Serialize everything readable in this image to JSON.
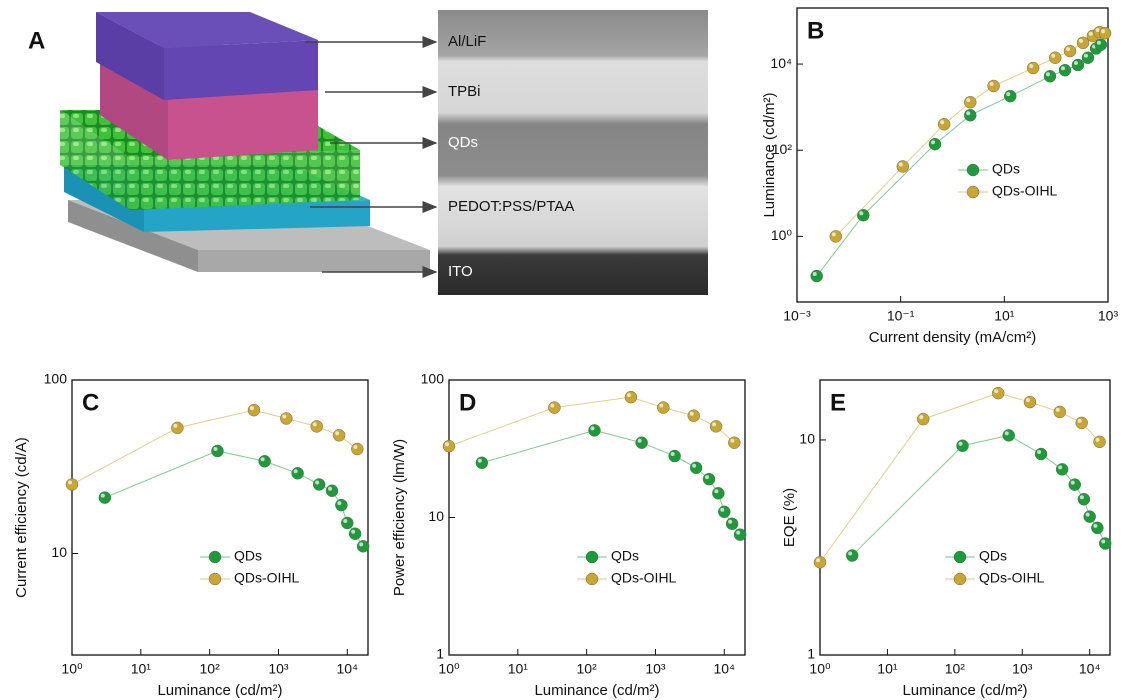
{
  "device": {
    "panel_label": "A",
    "layers": [
      "Al/LiF",
      "TPBi",
      "QDs",
      "PEDOT:PSS/PTAA",
      "ITO"
    ]
  },
  "chart_data": [
    {
      "type": "scatter",
      "panel_label": "B",
      "xlabel": "Current density (mA/cm²)",
      "ylabel": "Luminance (cd/m²)",
      "xscale": "log",
      "yscale": "log",
      "xlim": [
        0.001,
        1000
      ],
      "ylim": [
        0.03,
        200000
      ],
      "xticks": [
        {
          "value": 0.001,
          "label": "10⁻³"
        },
        {
          "value": 0.1,
          "label": "10⁻¹"
        },
        {
          "value": 10,
          "label": "10¹"
        },
        {
          "value": 1000,
          "label": "10³"
        }
      ],
      "yticks": [
        {
          "value": 1,
          "label": "10⁰"
        },
        {
          "value": 100,
          "label": "10²"
        },
        {
          "value": 10000,
          "label": "10⁴"
        }
      ],
      "legend": "center right",
      "series": [
        {
          "name": "QDs",
          "color": "#1f9a3a",
          "x": [
            0.0024,
            0.019,
            0.46,
            2.2,
            13,
            76,
            148,
            263,
            410,
            590,
            730
          ],
          "values": [
            0.12,
            3.1,
            138,
            650,
            1800,
            5200,
            7200,
            9500,
            14000,
            23000,
            28000
          ]
        },
        {
          "name": "QDs-OIHL",
          "color": "#c9a531",
          "x": [
            0.0056,
            0.11,
            0.69,
            2.2,
            6.2,
            36,
            96,
            185,
            330,
            510,
            690,
            880
          ],
          "values": [
            1.0,
            42,
            400,
            1300,
            3100,
            8100,
            14000,
            20000,
            31000,
            45000,
            55000,
            52000
          ]
        }
      ]
    },
    {
      "type": "scatter",
      "panel_label": "C",
      "xlabel": "Luminance (cd/m²)",
      "ylabel": "Current efficiency (cd/A)",
      "xscale": "log",
      "yscale": "log",
      "xlim": [
        1,
        20000
      ],
      "ylim": [
        2.6,
        100
      ],
      "xticks": [
        {
          "value": 1,
          "label": "10⁰"
        },
        {
          "value": 10,
          "label": "10¹"
        },
        {
          "value": 100,
          "label": "10²"
        },
        {
          "value": 1000,
          "label": "10³"
        },
        {
          "value": 10000,
          "label": "10⁴"
        }
      ],
      "yticks": [
        10,
        100
      ],
      "legend": "lower center",
      "series": [
        {
          "name": "QDs",
          "color": "#1f9a3a",
          "x": [
            3,
            130,
            630,
            1900,
            3900,
            6000,
            8200,
            10000,
            13000,
            17000
          ],
          "values": [
            21,
            39,
            34,
            29,
            25,
            23,
            19,
            15,
            13,
            11
          ]
        },
        {
          "name": "QDs-OIHL",
          "color": "#c9a531",
          "x": [
            1,
            34,
            440,
            1300,
            3600,
            7600,
            14000
          ],
          "values": [
            25,
            53,
            67,
            60,
            54,
            48,
            40
          ]
        }
      ]
    },
    {
      "type": "scatter",
      "panel_label": "D",
      "xlabel": "Luminance (cd/m²)",
      "ylabel": "Power efficiency (lm/W)",
      "xscale": "log",
      "yscale": "log",
      "xlim": [
        1,
        20000
      ],
      "ylim": [
        1,
        100
      ],
      "xticks": [
        {
          "value": 1,
          "label": "10⁰"
        },
        {
          "value": 10,
          "label": "10¹"
        },
        {
          "value": 100,
          "label": "10²"
        },
        {
          "value": 1000,
          "label": "10³"
        },
        {
          "value": 10000,
          "label": "10⁴"
        }
      ],
      "yticks": [
        1,
        10,
        100
      ],
      "legend": "lower center",
      "series": [
        {
          "name": "QDs",
          "color": "#1f9a3a",
          "x": [
            3,
            130,
            630,
            1900,
            3900,
            6000,
            8200,
            10000,
            13000,
            17000
          ],
          "values": [
            25,
            43,
            35,
            28,
            23,
            19,
            15,
            11,
            9,
            7.5
          ]
        },
        {
          "name": "QDs-OIHL",
          "color": "#c9a531",
          "x": [
            1,
            34,
            440,
            1300,
            3600,
            7600,
            14000
          ],
          "values": [
            33,
            63,
            75,
            63,
            55,
            46,
            35
          ]
        }
      ]
    },
    {
      "type": "scatter",
      "panel_label": "E",
      "xlabel": "Luminance (cd/m²)",
      "ylabel": "EQE (%)",
      "xscale": "log",
      "yscale": "log",
      "xlim": [
        1,
        20000
      ],
      "ylim": [
        1,
        19
      ],
      "xticks": [
        {
          "value": 1,
          "label": "10⁰"
        },
        {
          "value": 10,
          "label": "10¹"
        },
        {
          "value": 100,
          "label": "10²"
        },
        {
          "value": 1000,
          "label": "10³"
        },
        {
          "value": 10000,
          "label": "10⁴"
        }
      ],
      "yticks": [
        1,
        10
      ],
      "legend": "lower center",
      "series": [
        {
          "name": "QDs",
          "color": "#1f9a3a",
          "x": [
            3,
            130,
            630,
            1900,
            3900,
            6000,
            8200,
            10000,
            13000,
            17000
          ],
          "values": [
            2.9,
            9.4,
            10.5,
            8.6,
            7.3,
            6.2,
            5.3,
            4.4,
            3.9,
            3.3
          ]
        },
        {
          "name": "QDs-OIHL",
          "color": "#c9a531",
          "x": [
            1,
            34,
            440,
            1300,
            3600,
            7600,
            14000
          ],
          "values": [
            2.7,
            12.5,
            16.5,
            15,
            13.5,
            12,
            9.8
          ]
        }
      ]
    }
  ]
}
